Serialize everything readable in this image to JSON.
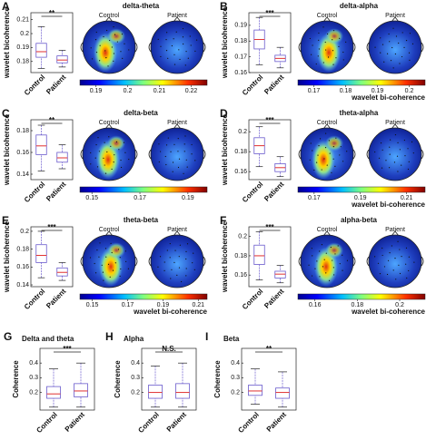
{
  "chart_data": [
    {
      "type": "box",
      "letter": "A",
      "title": "delta-theta",
      "ylabel": "wavelet bicoherence",
      "categories": [
        "Control",
        "Patient"
      ],
      "significance": "**",
      "boxes": [
        {
          "whislo": 0.175,
          "q1": 0.183,
          "med": 0.187,
          "q3": 0.193,
          "whishi": 0.205
        },
        {
          "whislo": 0.176,
          "q1": 0.179,
          "med": 0.181,
          "q3": 0.184,
          "whishi": 0.188
        }
      ],
      "ylim": [
        0.172,
        0.215
      ],
      "yticks": [
        0.18,
        0.19,
        0.2,
        0.21
      ],
      "box_color": "#6a5acd",
      "median_color": "#e03030",
      "maps": [
        "Control",
        "Patient"
      ],
      "colorbar": {
        "ticks": [
          0.19,
          0.2,
          0.21,
          0.22
        ],
        "lim": [
          0.185,
          0.225
        ]
      }
    },
    {
      "type": "box",
      "letter": "B",
      "title": "delta-alpha",
      "ylabel": "wavelet bicoherence",
      "categories": [
        "Control",
        "Patient"
      ],
      "significance": "***",
      "boxes": [
        {
          "whislo": 0.165,
          "q1": 0.175,
          "med": 0.181,
          "q3": 0.187,
          "whishi": 0.195
        },
        {
          "whislo": 0.163,
          "q1": 0.167,
          "med": 0.169,
          "q3": 0.171,
          "whishi": 0.176
        }
      ],
      "ylim": [
        0.16,
        0.198
      ],
      "yticks": [
        0.16,
        0.17,
        0.18,
        0.19
      ],
      "box_color": "#6a5acd",
      "median_color": "#e03030",
      "maps": [
        "Control",
        "Patient"
      ],
      "colorbar": {
        "label": "wavelet bi-coherence",
        "ticks": [
          0.17,
          0.18,
          0.19,
          0.2
        ],
        "lim": [
          0.165,
          0.205
        ]
      }
    },
    {
      "type": "box",
      "letter": "C",
      "title": "delta-beta",
      "ylabel": "wavelet bicoherence",
      "categories": [
        "Control",
        "Patient"
      ],
      "significance": "**",
      "boxes": [
        {
          "whislo": 0.143,
          "q1": 0.158,
          "med": 0.166,
          "q3": 0.176,
          "whishi": 0.185
        },
        {
          "whislo": 0.145,
          "q1": 0.151,
          "med": 0.155,
          "q3": 0.16,
          "whishi": 0.167
        }
      ],
      "ylim": [
        0.135,
        0.19
      ],
      "yticks": [
        0.14,
        0.16,
        0.18
      ],
      "box_color": "#6a5acd",
      "median_color": "#e03030",
      "maps": [
        "Control",
        "Patient"
      ],
      "colorbar": {
        "ticks": [
          0.15,
          0.17,
          0.19
        ],
        "lim": [
          0.145,
          0.198
        ]
      }
    },
    {
      "type": "box",
      "letter": "D",
      "title": "theta-alpha",
      "ylabel": "wavelet bicoherence",
      "categories": [
        "Control",
        "Patient"
      ],
      "significance": "***",
      "boxes": [
        {
          "whislo": 0.165,
          "q1": 0.178,
          "med": 0.186,
          "q3": 0.194,
          "whishi": 0.205
        },
        {
          "whislo": 0.155,
          "q1": 0.16,
          "med": 0.164,
          "q3": 0.168,
          "whishi": 0.175
        }
      ],
      "ylim": [
        0.152,
        0.212
      ],
      "yticks": [
        0.16,
        0.18,
        0.2
      ],
      "box_color": "#6a5acd",
      "median_color": "#e03030",
      "maps": [
        "Control",
        "Patient"
      ],
      "colorbar": {
        "label": "wavelet bi-coherence",
        "ticks": [
          0.17,
          0.19,
          0.21
        ],
        "lim": [
          0.163,
          0.218
        ]
      }
    },
    {
      "type": "box",
      "letter": "E",
      "title": "theta-beta",
      "ylabel": "wavelet bicoherence",
      "categories": [
        "Control",
        "Patient"
      ],
      "significance": "***",
      "boxes": [
        {
          "whislo": 0.148,
          "q1": 0.165,
          "med": 0.173,
          "q3": 0.185,
          "whishi": 0.2
        },
        {
          "whislo": 0.145,
          "q1": 0.15,
          "med": 0.154,
          "q3": 0.159,
          "whishi": 0.165
        }
      ],
      "ylim": [
        0.138,
        0.205
      ],
      "yticks": [
        0.14,
        0.16,
        0.18,
        0.2
      ],
      "box_color": "#6a5acd",
      "median_color": "#e03030",
      "maps": [
        "Control",
        "Patient"
      ],
      "colorbar": {
        "label": "wavelet bi-coherence",
        "ticks": [
          0.15,
          0.17,
          0.19,
          0.21
        ],
        "lim": [
          0.143,
          0.215
        ]
      }
    },
    {
      "type": "box",
      "letter": "F",
      "title": "alpha-beta",
      "ylabel": "wavelet bicoherence",
      "categories": [
        "Control",
        "Patient"
      ],
      "significance": "***",
      "boxes": [
        {
          "whislo": 0.155,
          "q1": 0.171,
          "med": 0.18,
          "q3": 0.191,
          "whishi": 0.205
        },
        {
          "whislo": 0.152,
          "q1": 0.157,
          "med": 0.161,
          "q3": 0.164,
          "whishi": 0.17
        }
      ],
      "ylim": [
        0.148,
        0.21
      ],
      "yticks": [
        0.16,
        0.18,
        0.2
      ],
      "box_color": "#6a5acd",
      "median_color": "#e03030",
      "maps": [
        "Control",
        "Patient"
      ],
      "colorbar": {
        "label": "wavelet bi-coherence",
        "ticks": [
          0.16,
          0.18,
          0.2
        ],
        "lim": [
          0.152,
          0.212
        ]
      }
    },
    {
      "type": "box",
      "letter": "G",
      "title": "Delta and theta",
      "ylabel": "Coherence",
      "categories": [
        "Control",
        "Patient"
      ],
      "significance": "***",
      "boxes": [
        {
          "whislo": 0.1,
          "q1": 0.16,
          "med": 0.19,
          "q3": 0.24,
          "whishi": 0.36
        },
        {
          "whislo": 0.1,
          "q1": 0.17,
          "med": 0.21,
          "q3": 0.26,
          "whishi": 0.4
        }
      ],
      "ylim": [
        0.08,
        0.5
      ],
      "yticks": [
        0.2,
        0.3,
        0.4
      ],
      "box_color": "#6a5acd",
      "median_color": "#e03030"
    },
    {
      "type": "box",
      "letter": "H",
      "title": "Alpha",
      "ylabel": "Coherence",
      "categories": [
        "Control",
        "Patient"
      ],
      "significance": "N.S.",
      "boxes": [
        {
          "whislo": 0.1,
          "q1": 0.16,
          "med": 0.2,
          "q3": 0.25,
          "whishi": 0.38
        },
        {
          "whislo": 0.1,
          "q1": 0.16,
          "med": 0.2,
          "q3": 0.26,
          "whishi": 0.4
        }
      ],
      "ylim": [
        0.08,
        0.5
      ],
      "yticks": [
        0.2,
        0.3,
        0.4
      ],
      "box_color": "#6a5acd",
      "median_color": "#e03030"
    },
    {
      "type": "box",
      "letter": "I",
      "title": "Beta",
      "ylabel": "Coherence",
      "categories": [
        "Control",
        "Patient"
      ],
      "significance": "**",
      "boxes": [
        {
          "whislo": 0.12,
          "q1": 0.18,
          "med": 0.21,
          "q3": 0.25,
          "whishi": 0.36
        },
        {
          "whislo": 0.1,
          "q1": 0.16,
          "med": 0.2,
          "q3": 0.23,
          "whishi": 0.34
        }
      ],
      "ylim": [
        0.08,
        0.5
      ],
      "yticks": [
        0.2,
        0.3,
        0.4
      ],
      "box_color": "#6a5acd",
      "median_color": "#e03030"
    }
  ]
}
